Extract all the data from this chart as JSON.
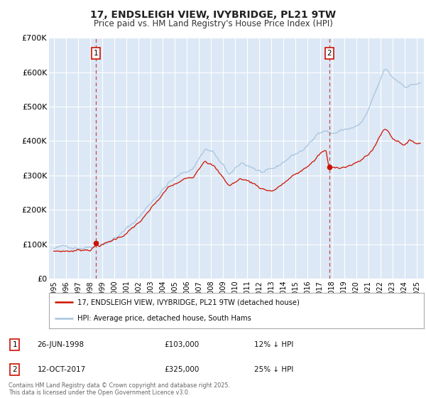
{
  "title": "17, ENDSLEIGH VIEW, IVYBRIDGE, PL21 9TW",
  "subtitle": "Price paid vs. HM Land Registry's House Price Index (HPI)",
  "title_fontsize": 10,
  "subtitle_fontsize": 8.5,
  "background_color": "#ffffff",
  "plot_bg_color": "#dce8f5",
  "grid_color": "#ffffff",
  "ylim": [
    0,
    700000
  ],
  "yticks": [
    0,
    100000,
    200000,
    300000,
    400000,
    500000,
    600000,
    700000
  ],
  "ytick_labels": [
    "£0",
    "£100K",
    "£200K",
    "£300K",
    "£400K",
    "£500K",
    "£600K",
    "£700K"
  ],
  "xlim_start": 1994.6,
  "xlim_end": 2025.6,
  "xticks": [
    1995,
    1996,
    1997,
    1998,
    1999,
    2000,
    2001,
    2002,
    2003,
    2004,
    2005,
    2006,
    2007,
    2008,
    2009,
    2010,
    2011,
    2012,
    2013,
    2014,
    2015,
    2016,
    2017,
    2018,
    2019,
    2020,
    2021,
    2022,
    2023,
    2024,
    2025
  ],
  "hpi_color": "#a8c4e0",
  "price_color": "#cc1100",
  "marker1_x": 1998.48,
  "marker1_y": 103000,
  "marker1_label": "1",
  "marker1_date": "26-JUN-1998",
  "marker1_price": "£103,000",
  "marker1_hpi": "12% ↓ HPI",
  "marker2_x": 2017.78,
  "marker2_y": 325000,
  "marker2_label": "2",
  "marker2_date": "12-OCT-2017",
  "marker2_price": "£325,000",
  "marker2_hpi": "25% ↓ HPI",
  "legend_line1": "17, ENDSLEIGH VIEW, IVYBRIDGE, PL21 9TW (detached house)",
  "legend_line2": "HPI: Average price, detached house, South Hams",
  "footer": "Contains HM Land Registry data © Crown copyright and database right 2025.\nThis data is licensed under the Open Government Licence v3.0."
}
